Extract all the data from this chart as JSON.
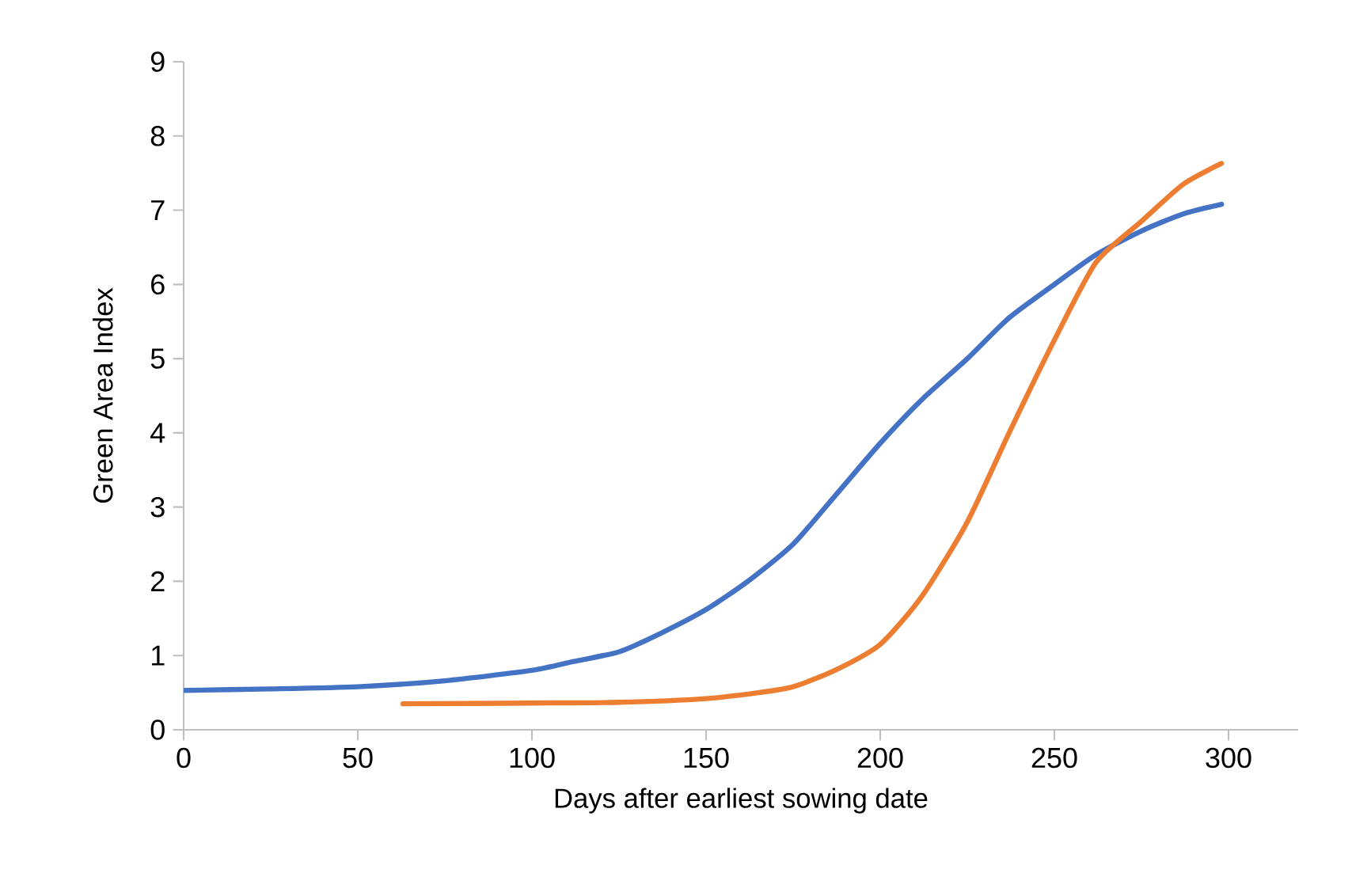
{
  "chart_data": {
    "type": "line",
    "xlabel": "Days after earliest sowing date",
    "ylabel": "Green Area Index",
    "xlim": [
      0,
      320
    ],
    "ylim": [
      0,
      9
    ],
    "xticks": [
      0,
      50,
      100,
      150,
      200,
      250,
      300
    ],
    "yticks": [
      0,
      1,
      2,
      3,
      4,
      5,
      6,
      7,
      8,
      9
    ],
    "grid": false,
    "line_style": "solid",
    "series": [
      {
        "color": "#4472c4",
        "x": [
          0,
          25,
          50,
          75,
          100,
          112,
          125,
          137,
          150,
          162,
          175,
          187,
          200,
          212,
          225,
          237,
          250,
          262,
          275,
          287,
          298
        ],
        "values": [
          0.53,
          0.55,
          0.58,
          0.66,
          0.8,
          0.92,
          1.05,
          1.3,
          1.62,
          2.0,
          2.5,
          3.15,
          3.86,
          4.45,
          5.0,
          5.55,
          6.0,
          6.4,
          6.72,
          6.95,
          7.08
        ]
      },
      {
        "color": "#ed7d31",
        "x": [
          63,
          100,
          125,
          150,
          165,
          175,
          187,
          200,
          212,
          225,
          237,
          250,
          262,
          275,
          287,
          298
        ],
        "values": [
          0.35,
          0.36,
          0.37,
          0.42,
          0.5,
          0.58,
          0.8,
          1.15,
          1.8,
          2.8,
          4.0,
          5.25,
          6.3,
          6.85,
          7.35,
          7.63
        ]
      }
    ]
  }
}
